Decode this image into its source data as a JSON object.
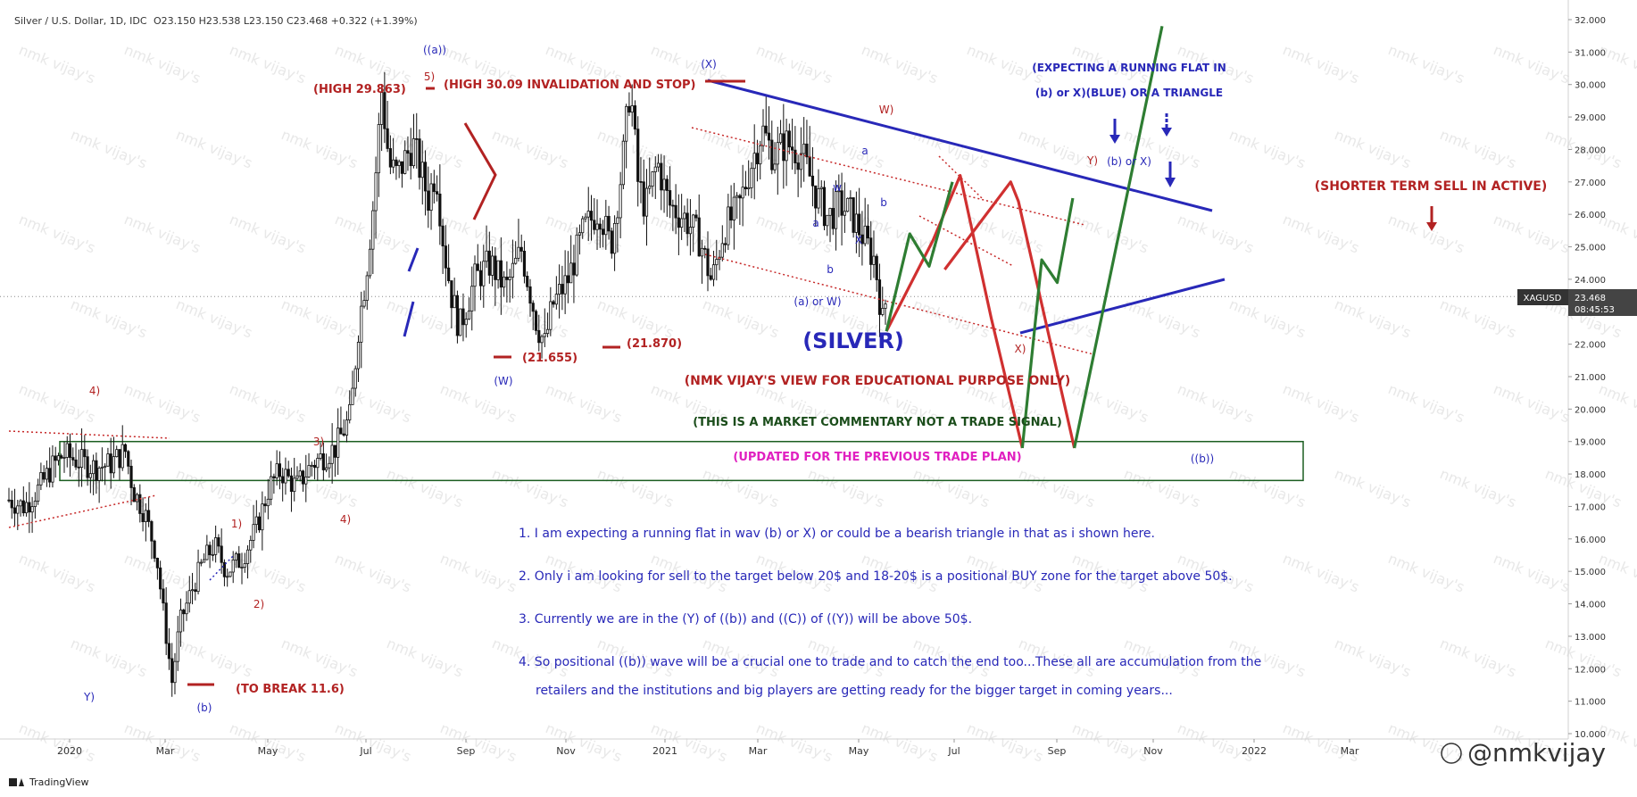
{
  "header": {
    "symbol_title": "Silver / U.S. Dollar, 1D, IDC",
    "ohlc": "O23.150  H23.538  L23.150  C23.468  +0.322 (+1.39%)"
  },
  "price_tag": {
    "symbol": "XAGUSD",
    "price": "23.468",
    "countdown": "08:45:53"
  },
  "footer": {
    "brand": "TradingView",
    "handle": "@nmkvijay"
  },
  "watermark": "nmk vijay's",
  "colors": {
    "wave_red": "#b22222",
    "wave_blue": "#2828b8",
    "wave_green": "#2e7d32",
    "zone_green": "#1b5e20",
    "candle": "#111111",
    "magenta": "#e020c0",
    "dark_green_text": "#1b4d1b"
  },
  "chart_data": {
    "type": "candlestick",
    "title": "(SILVER)",
    "y_axis": {
      "ticks": [
        "10.000",
        "11.000",
        "12.000",
        "13.000",
        "14.000",
        "15.000",
        "16.000",
        "17.000",
        "18.000",
        "19.000",
        "20.000",
        "21.000",
        "22.000",
        "23.000",
        "24.000",
        "25.000",
        "26.000",
        "27.000",
        "28.000",
        "29.000",
        "30.000",
        "31.000",
        "32.000"
      ],
      "range": [
        10,
        32
      ],
      "current_price": 23.468
    },
    "x_axis": {
      "ticks": [
        "2020",
        "Mar",
        "May",
        "Jul",
        "Sep",
        "Nov",
        "2021",
        "Mar",
        "May",
        "Jul",
        "Sep",
        "Nov",
        "2022",
        "Mar"
      ]
    },
    "price_path": [
      [
        0.0,
        17.2
      ],
      [
        0.02,
        17.0
      ],
      [
        0.04,
        17.6
      ],
      [
        0.055,
        18.2
      ],
      [
        0.07,
        18.6
      ],
      [
        0.09,
        18.4
      ],
      [
        0.11,
        18.2
      ],
      [
        0.13,
        18.3
      ],
      [
        0.15,
        18.7
      ],
      [
        0.16,
        17.5
      ],
      [
        0.175,
        16.8
      ],
      [
        0.19,
        15.5
      ],
      [
        0.2,
        13.5
      ],
      [
        0.21,
        11.6
      ],
      [
        0.22,
        13.4
      ],
      [
        0.235,
        14.4
      ],
      [
        0.25,
        15.3
      ],
      [
        0.265,
        15.8
      ],
      [
        0.28,
        15.0
      ],
      [
        0.3,
        15.4
      ],
      [
        0.32,
        16.4
      ],
      [
        0.335,
        17.6
      ],
      [
        0.35,
        18.1
      ],
      [
        0.37,
        17.6
      ],
      [
        0.39,
        18.3
      ],
      [
        0.42,
        18.8
      ],
      [
        0.44,
        19.8
      ],
      [
        0.45,
        22.5
      ],
      [
        0.46,
        24.2
      ],
      [
        0.47,
        26.5
      ],
      [
        0.48,
        29.8
      ],
      [
        0.49,
        27.5
      ],
      [
        0.5,
        27.2
      ],
      [
        0.52,
        28.2
      ],
      [
        0.54,
        26.5
      ],
      [
        0.55,
        27.4
      ],
      [
        0.56,
        25.0
      ],
      [
        0.57,
        23.5
      ],
      [
        0.58,
        22.5
      ],
      [
        0.6,
        24.0
      ],
      [
        0.62,
        24.5
      ],
      [
        0.64,
        23.7
      ],
      [
        0.66,
        24.9
      ],
      [
        0.68,
        22.6
      ],
      [
        0.69,
        22.0
      ],
      [
        0.7,
        23.2
      ],
      [
        0.72,
        24.0
      ],
      [
        0.74,
        25.5
      ],
      [
        0.76,
        26.2
      ],
      [
        0.775,
        25.0
      ],
      [
        0.79,
        27.5
      ],
      [
        0.8,
        30.0
      ],
      [
        0.81,
        27.0
      ],
      [
        0.82,
        26.2
      ],
      [
        0.835,
        27.6
      ],
      [
        0.85,
        26.3
      ],
      [
        0.87,
        25.9
      ],
      [
        0.89,
        25.2
      ],
      [
        0.905,
        23.9
      ],
      [
        0.92,
        25.5
      ],
      [
        0.94,
        26.2
      ],
      [
        0.955,
        27.5
      ],
      [
        0.97,
        28.6
      ],
      [
        0.985,
        27.8
      ],
      [
        1.0,
        28.2
      ],
      [
        1.02,
        27.9
      ],
      [
        1.04,
        26.6
      ],
      [
        1.055,
        25.9
      ],
      [
        1.07,
        26.3
      ],
      [
        1.085,
        26.0
      ],
      [
        1.1,
        25.3
      ],
      [
        1.115,
        24.6
      ],
      [
        1.125,
        22.7
      ],
      [
        1.13,
        23.468
      ]
    ],
    "horizontal_levels": [
      {
        "label": "(HIGH 29.863)",
        "value": 29.863
      },
      {
        "label": "(HIGH 30.09 INVALIDATION AND STOP)",
        "value": 30.09
      },
      {
        "label": "(21.655)",
        "value": 21.655
      },
      {
        "label": "(21.870)",
        "value": 21.87
      },
      {
        "label": "(TO BREAK 11.6)",
        "value": 11.6
      }
    ],
    "zone": {
      "from": 17.8,
      "to": 19.0,
      "label": "BUY zone"
    },
    "projections": {
      "red": [
        [
          1.13,
          22.4
        ],
        [
          1.19,
          25.2
        ],
        [
          1.225,
          27.2
        ],
        [
          1.265,
          22.8
        ],
        [
          1.305,
          18.8
        ]
      ],
      "red2": [
        [
          1.205,
          24.3
        ],
        [
          1.29,
          27.0
        ],
        [
          1.3,
          26.4
        ],
        [
          1.372,
          18.8
        ]
      ],
      "green": [
        [
          1.13,
          22.4
        ],
        [
          1.16,
          25.4
        ],
        [
          1.185,
          24.4
        ],
        [
          1.215,
          27.0
        ]
      ],
      "green2": [
        [
          1.305,
          18.8
        ],
        [
          1.33,
          24.6
        ],
        [
          1.35,
          23.9
        ],
        [
          1.37,
          26.5
        ]
      ],
      "green3": [
        [
          1.372,
          18.8
        ],
        [
          1.485,
          31.8
        ]
      ]
    },
    "wave_labels": [
      {
        "text": "((a))",
        "color": "blue"
      },
      {
        "text": "5)",
        "color": "red"
      },
      {
        "text": "(X)",
        "color": "blue"
      },
      {
        "text": "W)",
        "color": "red"
      },
      {
        "text": "Y)",
        "color": "red"
      },
      {
        "text": "(b) or X)",
        "color": "blue"
      },
      {
        "text": "a",
        "color": "blue"
      },
      {
        "text": "b",
        "color": "blue"
      },
      {
        "text": "w",
        "color": "blue"
      },
      {
        "text": "a",
        "color": "blue"
      },
      {
        "text": "b",
        "color": "blue"
      },
      {
        "text": "X",
        "color": "blue"
      },
      {
        "text": "(a) or W)",
        "color": "blue"
      },
      {
        "text": "X)",
        "color": "red"
      },
      {
        "text": "(W)",
        "color": "blue"
      },
      {
        "text": "4)",
        "color": "red"
      },
      {
        "text": "3)",
        "color": "red"
      },
      {
        "text": "1)",
        "color": "red"
      },
      {
        "text": "2)",
        "color": "red"
      },
      {
        "text": "4)",
        "color": "red"
      },
      {
        "text": "Y)",
        "color": "blue"
      },
      {
        "text": "(b)",
        "color": "blue"
      },
      {
        "text": "((b))",
        "color": "blue"
      }
    ],
    "annotations": {
      "expecting_line1": "(EXPECTING A RUNNING FLAT IN",
      "expecting_line2": "(b) or X)(BLUE) OR A TRIANGLE",
      "shorter_term": "(SHORTER TERM SELL IN ACTIVE)",
      "view": "(NMK VIJAY'S VIEW FOR EDUCATIONAL PURPOSE ONLY)",
      "commentary": "(THIS IS A MARKET COMMENTARY NOT A TRADE SIGNAL)",
      "updated": "(UPDATED FOR THE PREVIOUS TRADE PLAN)"
    },
    "notes": [
      "1. I am expecting a running flat in wav (b) or X) or could be a bearish triangle in that as i shown here.",
      "2. Only i am looking for sell to the target below 20$ and 18-20$ is a positional BUY zone for the target above 50$.",
      "3. Currently we are in the (Y) of ((b)) and ((C)) of ((Y)) will be above 50$.",
      "4. So positional ((b)) wave will be a crucial one to trade and to catch the end too...These all are accumulation from the",
      "retailers and the institutions and big players are getting ready for the bigger target in coming years..."
    ]
  }
}
